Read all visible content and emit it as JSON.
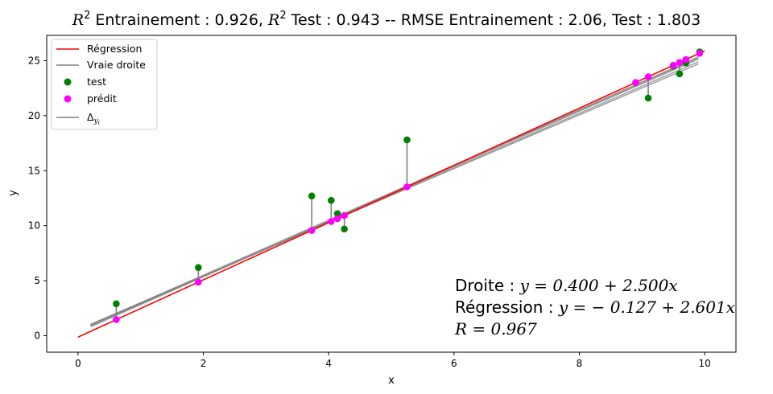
{
  "chart_data": {
    "type": "scatter",
    "title_parts": {
      "r2": "R",
      "sup": "2",
      "train_label": " Entrainement : 0.926, ",
      "test_label": " Test : 0.943 --  RMSE Entrainement : 2.06, Test : 1.803"
    },
    "xlabel": "x",
    "ylabel": "y",
    "xlim": [
      -0.5,
      10.5
    ],
    "ylim": [
      -1.5,
      27.3
    ],
    "xticks": [
      0,
      2,
      4,
      6,
      8,
      10
    ],
    "yticks": [
      0,
      5,
      10,
      15,
      20,
      25
    ],
    "grid": false,
    "legend_position": "top-left",
    "legend": {
      "regression": "Régression",
      "true_line": "Vraie droite",
      "test": "test",
      "predicted": "prédit",
      "delta_main": "Δ",
      "delta_sub": "y",
      "delta_subsub": "i"
    },
    "regression_line": {
      "intercept": -0.127,
      "slope": 2.601,
      "x_range": [
        0,
        10
      ],
      "color": "#ff0000"
    },
    "true_line": {
      "intercept": 0.4,
      "slope": 2.5,
      "color": "#808080"
    },
    "train_lines": [
      {
        "x_range": [
          0.2,
          9.9
        ],
        "intercept": 0.4,
        "slope": 2.5
      },
      {
        "x_range": [
          0.2,
          9.9
        ],
        "intercept": 0.45,
        "slope": 2.47
      },
      {
        "x_range": [
          0.2,
          9.9
        ],
        "intercept": 0.3,
        "slope": 2.53
      },
      {
        "x_range": [
          0.2,
          9.9
        ],
        "intercept": 0.55,
        "slope": 2.44
      },
      {
        "x_range": [
          0.2,
          9.9
        ],
        "intercept": 0.5,
        "slope": 2.5
      }
    ],
    "series": [
      {
        "name": "test",
        "color": "#008000",
        "points": [
          [
            0.61,
            2.9
          ],
          [
            1.92,
            6.2
          ],
          [
            3.73,
            12.7
          ],
          [
            4.04,
            12.3
          ],
          [
            4.14,
            11.1
          ],
          [
            4.25,
            9.7
          ],
          [
            5.25,
            17.8
          ],
          [
            8.9,
            23.0
          ],
          [
            9.1,
            21.6
          ],
          [
            9.5,
            24.5
          ],
          [
            9.6,
            23.8
          ],
          [
            9.7,
            24.8
          ],
          [
            9.92,
            25.8
          ]
        ]
      },
      {
        "name": "prédit",
        "color": "#ff00ff",
        "points": [
          [
            0.61,
            1.46
          ],
          [
            1.92,
            4.87
          ],
          [
            3.73,
            9.57
          ],
          [
            4.04,
            10.38
          ],
          [
            4.14,
            10.64
          ],
          [
            4.25,
            10.93
          ],
          [
            5.25,
            13.53
          ],
          [
            8.9,
            23.02
          ],
          [
            9.1,
            23.54
          ],
          [
            9.5,
            24.58
          ],
          [
            9.6,
            24.84
          ],
          [
            9.7,
            25.1
          ],
          [
            9.92,
            25.67
          ]
        ]
      }
    ],
    "annotation": {
      "line1_label": "Droite : ",
      "line1_eq": "y = 0.400 + 2.500x",
      "line2_label": "Régression : ",
      "line2_eq": "y = − 0.127 + 2.601x",
      "line3_eq": "R = 0.967",
      "anchor": [
        6.0,
        0.0
      ]
    }
  }
}
